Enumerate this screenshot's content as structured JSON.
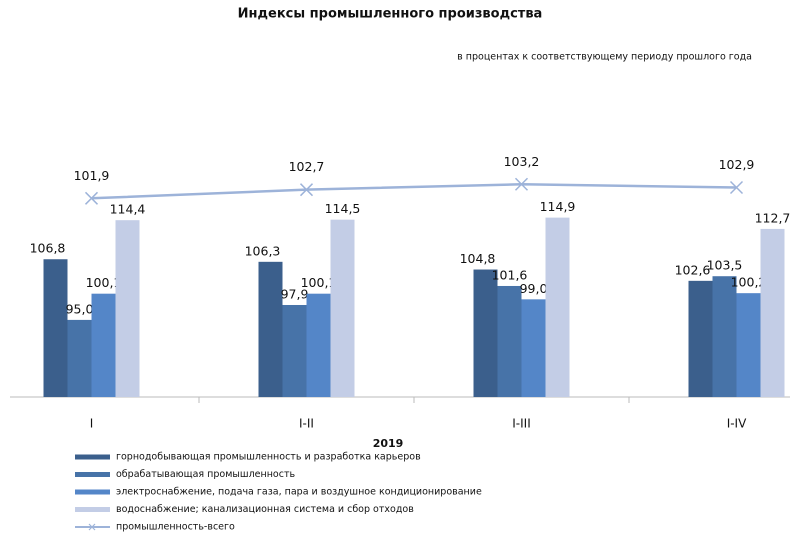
{
  "chart_data": {
    "type": "bar",
    "title": "Индексы промышленного производства",
    "subtitle": "в процентах к соответствующему периоду прошлого года",
    "x_label": "2019",
    "categories": [
      "I",
      "I-II",
      "I-III",
      "I-IV"
    ],
    "ylim": [
      80,
      130
    ],
    "y2lim": [
      83.5,
      107.3
    ],
    "legend": "bottom",
    "series": [
      {
        "name": "горнодобывающая промышленность и разработка карьеров",
        "color": "#3b5f8c",
        "values": [
          106.8,
          106.3,
          104.8,
          102.6
        ],
        "value_labels": [
          "106,8",
          "106,3",
          "104,8",
          "102,6"
        ]
      },
      {
        "name": "обрабатывающая промышленность",
        "color": "#4773a8",
        "values": [
          95.0,
          97.9,
          101.6,
          103.5
        ],
        "value_labels": [
          "95,0",
          "97,9",
          "101,6",
          "103,5"
        ]
      },
      {
        "name": "электроснабжение, подача газа, пара и воздушное кондиционирование",
        "color": "#5486c8",
        "values": [
          100.1,
          100.1,
          99.0,
          100.2
        ],
        "value_labels": [
          "100,1",
          "100,1",
          "99,0",
          "100,2"
        ]
      },
      {
        "name": "водоснабжение; канализационная система и сбор отходов",
        "color": "#c3cde6",
        "values": [
          114.4,
          114.5,
          114.9,
          112.7
        ],
        "value_labels": [
          "114,4",
          "114,5",
          "114,9",
          "112,7"
        ]
      },
      {
        "name": "промышленность-всего",
        "type": "line",
        "axis": "y2",
        "color": "#9db3d9",
        "values": [
          101.9,
          102.7,
          103.2,
          102.9
        ],
        "value_labels": [
          "101,9",
          "102,7",
          "103,2",
          "102,9"
        ]
      }
    ]
  }
}
